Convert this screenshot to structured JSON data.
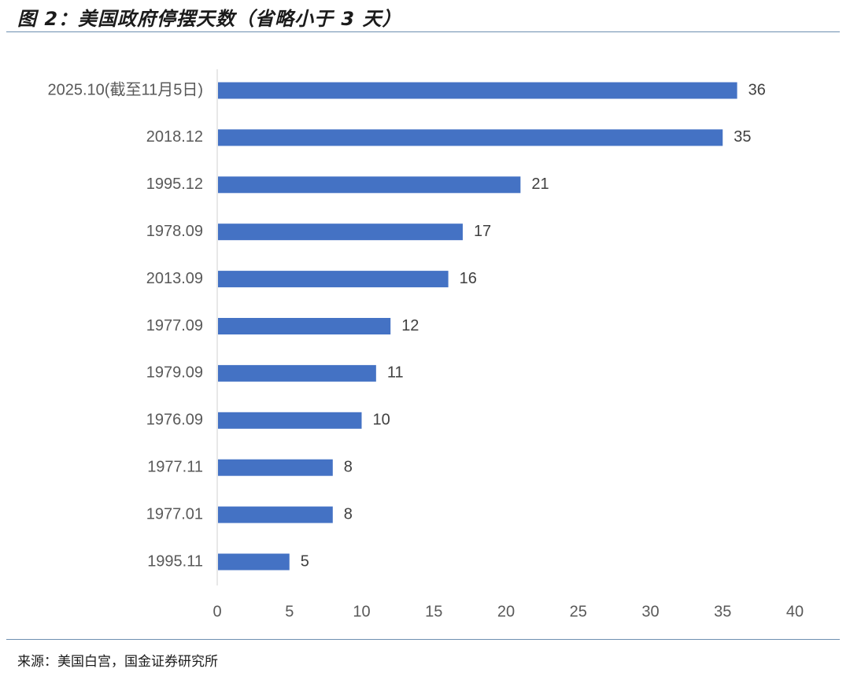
{
  "figure": {
    "title": "图 2：美国政府停摆天数（省略小于 3 天）",
    "source": "来源：美国白宫，国金证券研究所"
  },
  "chart_data": {
    "type": "bar",
    "orientation": "horizontal",
    "categories": [
      "2025.10(截至11月5日)",
      "2018.12",
      "1995.12",
      "1978.09",
      "2013.09",
      "1977.09",
      "1979.09",
      "1976.09",
      "1977.11",
      "1977.01",
      "1995.11"
    ],
    "values": [
      36,
      35,
      21,
      17,
      16,
      12,
      11,
      10,
      8,
      8,
      5
    ],
    "title": "图 2：美国政府停摆天数（省略小于 3 天）",
    "xlabel": "",
    "ylabel": "",
    "xlim": [
      0,
      40
    ],
    "xticks": [
      0,
      5,
      10,
      15,
      20,
      25,
      30,
      35,
      40
    ],
    "grid": false,
    "legend": "none",
    "data_labels": true,
    "bar_color": "#4472C4"
  }
}
